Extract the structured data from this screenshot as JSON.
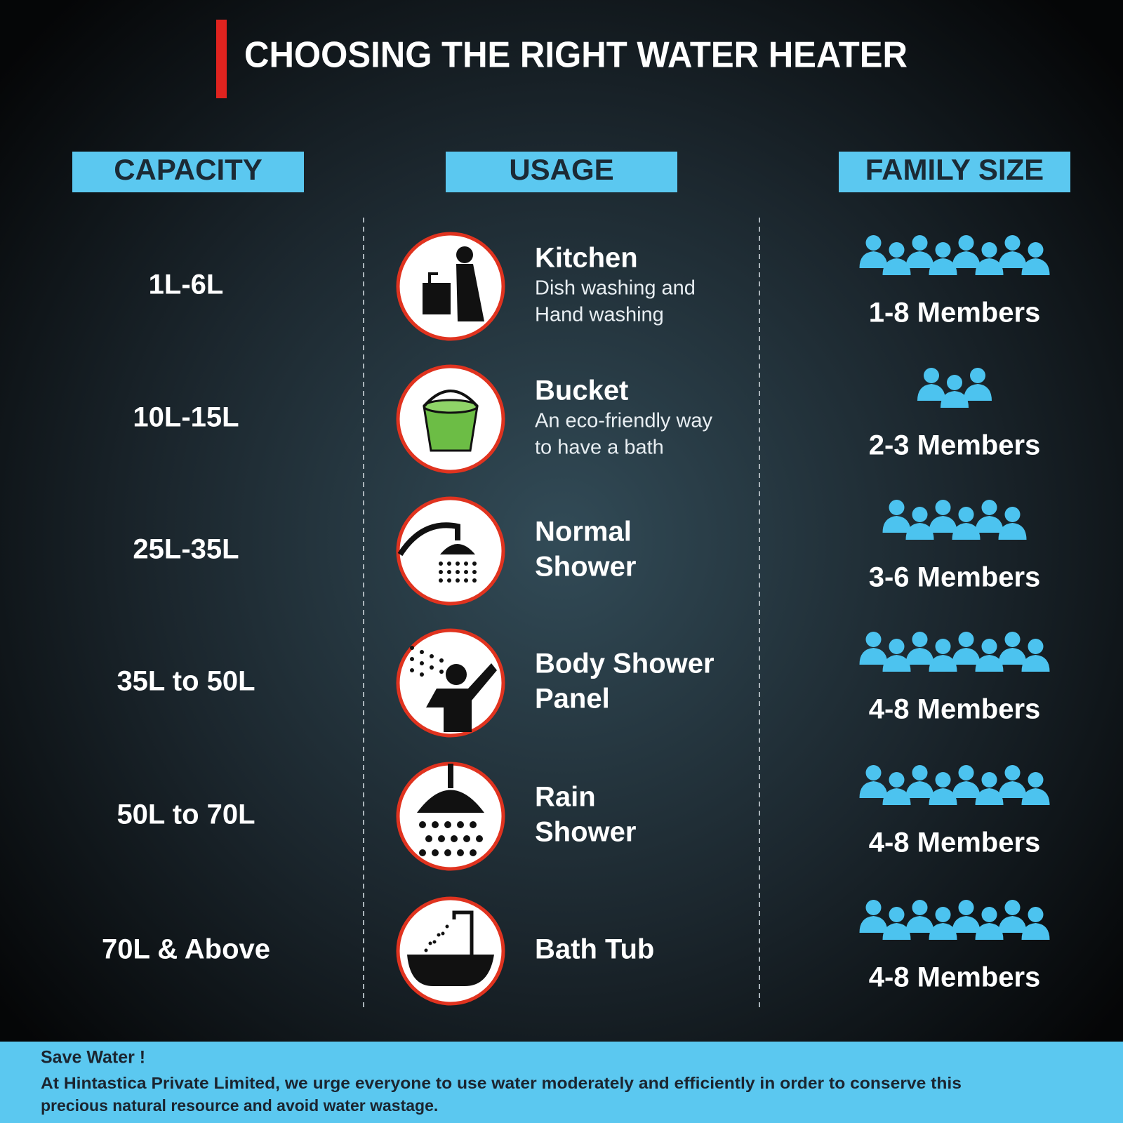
{
  "title": "CHOOSING THE RIGHT WATER HEATER",
  "headers": [
    "CAPACITY",
    "USAGE",
    "FAMILY SIZE"
  ],
  "rows": [
    {
      "capacity": "1L-6L",
      "usage": [
        "Kitchen"
      ],
      "details": [
        "Dish washing and",
        "Hand washing"
      ],
      "family": "1-8 Members"
    },
    {
      "capacity": "10L-15L",
      "usage": [
        "Bucket"
      ],
      "details": [
        "An eco-friendly way",
        "to have a bath"
      ],
      "family": "2-3 Members"
    },
    {
      "capacity": "25L-35L",
      "usage": [
        "Normal",
        "Shower"
      ],
      "family": "3-6 Members"
    },
    {
      "capacity": "35L to 50L",
      "usage": [
        "Body Shower",
        "Panel"
      ],
      "family": "4-8 Members"
    },
    {
      "capacity": "50L to 70L",
      "usage": [
        "Rain",
        "Shower"
      ],
      "family": "4-8 Members"
    },
    {
      "capacity": "70L & Above",
      "usage": [
        "Bath Tub"
      ],
      "family": "4-8 Members"
    }
  ],
  "footer": {
    "heading": "Save Water !",
    "lines": [
      "At Hintastica Private Limited, we urge everyone to use water moderately and efficiently in order to conserve this",
      "precious natural resource and avoid water wastage."
    ]
  }
}
